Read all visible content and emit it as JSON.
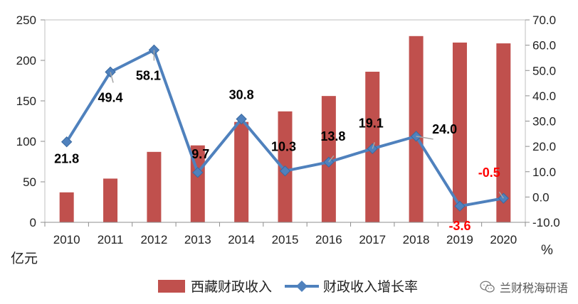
{
  "chart_data": {
    "type": "bar+line",
    "categories": [
      "2010",
      "2011",
      "2012",
      "2013",
      "2014",
      "2015",
      "2016",
      "2017",
      "2018",
      "2019",
      "2020"
    ],
    "series": [
      {
        "name": "西藏财政收入",
        "type": "bar",
        "axis": "left",
        "color": "#c0504d",
        "values": [
          37,
          54,
          87,
          95,
          124,
          137,
          156,
          186,
          230,
          222,
          221
        ]
      },
      {
        "name": "财政收入增长率",
        "type": "line",
        "axis": "right",
        "color": "#4f81bd",
        "values": [
          21.8,
          49.4,
          58.1,
          9.7,
          30.8,
          10.3,
          13.8,
          19.1,
          24.0,
          -3.6,
          -0.5
        ],
        "labels": [
          "21.8",
          "49.4",
          "58.1",
          "9.7",
          "30.8",
          "10.3",
          "13.8",
          "19.1",
          "24.0",
          "-3.6",
          "-0.5"
        ]
      }
    ],
    "left_axis": {
      "unit": "亿元",
      "ylim": [
        0,
        250
      ],
      "ticks": [
        "0",
        "50",
        "100",
        "150",
        "200",
        "250"
      ]
    },
    "right_axis": {
      "unit": "%",
      "ylim": [
        -10,
        70
      ],
      "ticks": [
        "-10.0",
        "0.0",
        "10.0",
        "20.0",
        "30.0",
        "40.0",
        "50.0",
        "60.0",
        "70.0"
      ]
    },
    "grid": false,
    "legend_position": "bottom",
    "negative_label_color": "#ff0000"
  },
  "watermark": {
    "text": "兰财税海研语"
  }
}
